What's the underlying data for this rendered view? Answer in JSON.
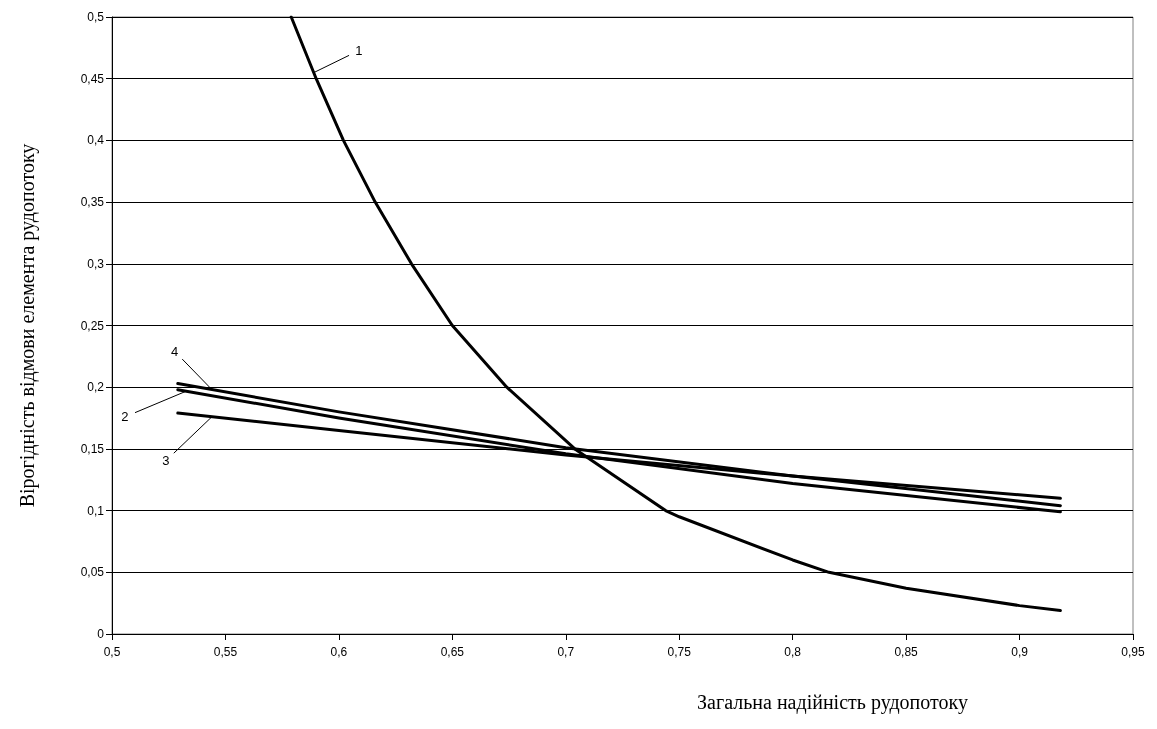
{
  "chart_data": {
    "type": "line",
    "xlabel": "Загальна надійність рудопотоку",
    "ylabel": "Вірогідність відмови елемента рудопотоку",
    "xlim": [
      0.5,
      0.95
    ],
    "xticks": [
      {
        "value": 0.5,
        "label": "0,5"
      },
      {
        "value": 0.55,
        "label": "0,55"
      },
      {
        "value": 0.6,
        "label": "0,6"
      },
      {
        "value": 0.65,
        "label": "0,65"
      },
      {
        "value": 0.7,
        "label": "0,7"
      },
      {
        "value": 0.75,
        "label": "0,75"
      },
      {
        "value": 0.8,
        "label": "0,8"
      },
      {
        "value": 0.85,
        "label": "0,85"
      },
      {
        "value": 0.9,
        "label": "0,9"
      },
      {
        "value": 0.95,
        "label": "0,95"
      }
    ],
    "ylim": [
      0,
      0.5
    ],
    "yticks": [
      0,
      {
        "value": 0.05,
        "label": "0,05"
      },
      {
        "value": 0.1,
        "label": "0,1"
      },
      {
        "value": 0.15,
        "label": "0,15"
      },
      {
        "value": 0.2,
        "label": "0,2"
      },
      {
        "value": 0.25,
        "label": "0,25"
      },
      {
        "value": 0.3,
        "label": "0,3"
      },
      {
        "value": 0.35,
        "label": "0,35"
      },
      {
        "value": 0.4,
        "label": "0,4"
      },
      {
        "value": 0.45,
        "label": "0,45"
      },
      {
        "value": 0.5,
        "label": "0,5"
      }
    ],
    "grid": "y",
    "marker": "none",
    "line_style": "solid",
    "series": [
      {
        "color": "#000000",
        "x": [
          0.579,
          0.59,
          0.602,
          0.616,
          0.632,
          0.65,
          0.674,
          0.704,
          0.744,
          0.75,
          0.8,
          0.816,
          0.85,
          0.9,
          0.918
        ],
        "values": [
          0.5,
          0.45,
          0.4,
          0.35,
          0.3,
          0.25,
          0.2,
          0.15,
          0.1,
          0.095,
          0.06,
          0.05,
          0.037,
          0.023,
          0.019
        ]
      },
      {
        "color": "#000000",
        "x": [
          0.529,
          0.6,
          0.7,
          0.8,
          0.918
        ],
        "values": [
          0.198,
          0.175,
          0.146,
          0.122,
          0.099
        ]
      },
      {
        "color": "#000000",
        "x": [
          0.529,
          0.6,
          0.7,
          0.8,
          0.918
        ],
        "values": [
          0.179,
          0.165,
          0.145,
          0.128,
          0.11
        ]
      },
      {
        "color": "#000000",
        "x": [
          0.529,
          0.6,
          0.7,
          0.8,
          0.918
        ],
        "values": [
          0.203,
          0.18,
          0.151,
          0.128,
          0.104
        ]
      }
    ],
    "annotations": [
      {
        "text": "1",
        "x": 0.589,
        "y": 0.455
      },
      {
        "text": "4",
        "x": 0.543,
        "y": 0.2
      },
      {
        "text": "2",
        "x": 0.533,
        "y": 0.197
      },
      {
        "text": "3",
        "x": 0.544,
        "y": 0.176
      }
    ]
  }
}
